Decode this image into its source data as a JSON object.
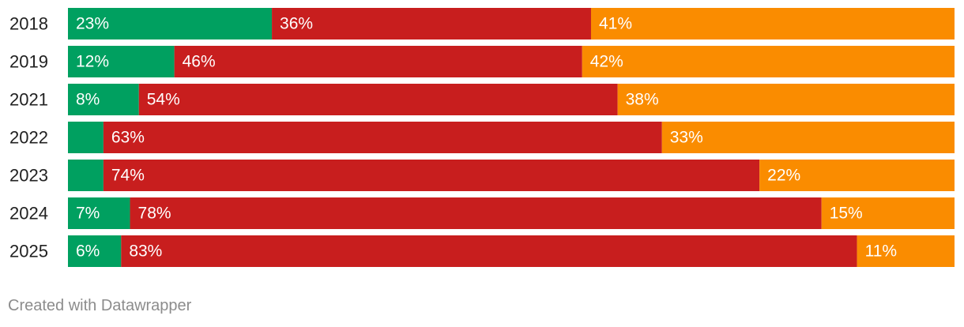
{
  "chart_data": {
    "type": "bar",
    "orientation": "horizontal",
    "stacked": true,
    "normalized_percent": true,
    "title": "",
    "xlabel": "",
    "ylabel": "",
    "xlim": [
      0,
      100
    ],
    "grid": false,
    "legend": "none",
    "categories": [
      "2018",
      "2019",
      "2021",
      "2022",
      "2023",
      "2024",
      "2025"
    ],
    "series": [
      {
        "color": "#00a060",
        "values": [
          23,
          12,
          8,
          4,
          4,
          7,
          6
        ],
        "labels": [
          "23%",
          "12%",
          "8%",
          "",
          "",
          "7%",
          "6%"
        ]
      },
      {
        "color": "#c81e1e",
        "values": [
          36,
          46,
          54,
          63,
          74,
          78,
          83
        ],
        "labels": [
          "36%",
          "46%",
          "54%",
          "63%",
          "74%",
          "78%",
          "83%"
        ]
      },
      {
        "color": "#fa8c00",
        "values": [
          41,
          42,
          38,
          33,
          22,
          15,
          11
        ],
        "labels": [
          "41%",
          "42%",
          "38%",
          "33%",
          "22%",
          "15%",
          "11%"
        ]
      }
    ]
  },
  "footer": {
    "credit": "Created with Datawrapper"
  }
}
